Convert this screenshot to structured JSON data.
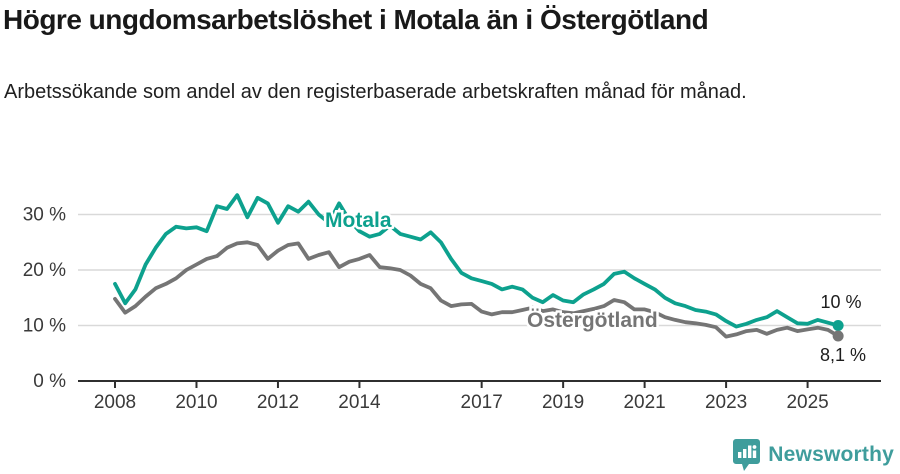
{
  "page": {
    "title": "Högre ungdomsarbetslöshet i Motala än i Östergötland",
    "subtitle": "Arbetssökande som andel av den registerbaserade arbetskraften månad för månad.",
    "brand": "Newsworthy"
  },
  "colors": {
    "motala": "#0da18e",
    "ostergotland": "#757575",
    "grid": "#d9d9d9",
    "axis": "#2f2f2f",
    "tick_text": "#3a3a3a",
    "value_text": "#1d1d1d",
    "brand": "#3f9d9c"
  },
  "chart_data": {
    "type": "line",
    "title": "Högre ungdomsarbetslöshet i Motala än i Östergötland",
    "subtitle": "Arbetssökande som andel av den registerbaserade arbetskraften månad för månad.",
    "grid": "horizontal",
    "legend": "inline-labels",
    "xlim": [
      2007.1,
      2026.8
    ],
    "ylim": [
      0,
      35
    ],
    "y_ticks": [
      {
        "value": 0,
        "label": "0 %"
      },
      {
        "value": 10,
        "label": "10 %"
      },
      {
        "value": 20,
        "label": "20 %"
      },
      {
        "value": 30,
        "label": "30 %"
      }
    ],
    "x_ticks": [
      {
        "value": 2008,
        "label": "2008"
      },
      {
        "value": 2010,
        "label": "2010"
      },
      {
        "value": 2012,
        "label": "2012"
      },
      {
        "value": 2014,
        "label": "2014"
      },
      {
        "value": 2017,
        "label": "2017"
      },
      {
        "value": 2019,
        "label": "2019"
      },
      {
        "value": 2021,
        "label": "2021"
      },
      {
        "value": 2023,
        "label": "2023"
      },
      {
        "value": 2025,
        "label": "2025"
      }
    ],
    "x": [
      2008.0,
      2008.25,
      2008.5,
      2008.75,
      2009.0,
      2009.25,
      2009.5,
      2009.75,
      2010.0,
      2010.25,
      2010.5,
      2010.75,
      2011.0,
      2011.25,
      2011.5,
      2011.75,
      2012.0,
      2012.25,
      2012.5,
      2012.75,
      2013.0,
      2013.25,
      2013.5,
      2013.75,
      2014.0,
      2014.25,
      2014.5,
      2014.75,
      2015.0,
      2015.25,
      2015.5,
      2015.75,
      2016.0,
      2016.25,
      2016.5,
      2016.75,
      2017.0,
      2017.25,
      2017.5,
      2017.75,
      2018.0,
      2018.25,
      2018.5,
      2018.75,
      2019.0,
      2019.25,
      2019.5,
      2019.75,
      2020.0,
      2020.25,
      2020.5,
      2020.75,
      2021.0,
      2021.25,
      2021.5,
      2021.75,
      2022.0,
      2022.25,
      2022.5,
      2022.75,
      2023.0,
      2023.25,
      2023.5,
      2023.75,
      2024.0,
      2024.25,
      2024.5,
      2024.75,
      2025.0,
      2025.25,
      2025.5,
      2025.75
    ],
    "series": [
      {
        "name": "Motala",
        "color": "#0da18e",
        "end_label": "10 %",
        "end_value": 10.0,
        "values": [
          17.5,
          14.0,
          16.5,
          21.0,
          24.0,
          26.5,
          27.8,
          27.5,
          27.7,
          27.0,
          31.5,
          31.0,
          33.5,
          29.5,
          33.0,
          32.0,
          28.5,
          31.5,
          30.5,
          32.3,
          30.0,
          28.5,
          32.0,
          29.0,
          27.0,
          26.0,
          26.5,
          28.0,
          26.5,
          26.0,
          25.5,
          26.8,
          25.0,
          22.0,
          19.5,
          18.5,
          18.0,
          17.5,
          16.5,
          17.0,
          16.5,
          15.0,
          14.2,
          15.5,
          14.5,
          14.2,
          15.6,
          16.5,
          17.5,
          19.3,
          19.7,
          18.5,
          17.5,
          16.5,
          15.0,
          14.0,
          13.5,
          12.8,
          12.5,
          12.0,
          10.8,
          9.8,
          10.3,
          11.0,
          11.5,
          12.6,
          11.5,
          10.4,
          10.3,
          11.0,
          10.5,
          10.0
        ]
      },
      {
        "name": "Östergötland",
        "color": "#757575",
        "end_label": "8,1 %",
        "end_value": 8.1,
        "values": [
          14.8,
          12.3,
          13.5,
          15.2,
          16.7,
          17.5,
          18.5,
          20.0,
          21.0,
          22.0,
          22.5,
          24.0,
          24.8,
          25.0,
          24.5,
          22.0,
          23.5,
          24.5,
          24.8,
          22.0,
          22.7,
          23.2,
          20.5,
          21.5,
          22.0,
          22.7,
          20.5,
          20.3,
          20.0,
          19.0,
          17.5,
          16.7,
          14.5,
          13.5,
          13.8,
          13.9,
          12.5,
          12.0,
          12.4,
          12.4,
          12.8,
          13.2,
          12.6,
          12.9,
          12.4,
          12.2,
          12.6,
          13.0,
          13.5,
          14.6,
          14.2,
          12.9,
          12.9,
          12.4,
          11.5,
          11.0,
          10.6,
          10.4,
          10.1,
          9.7,
          8.0,
          8.4,
          9.0,
          9.2,
          8.5,
          9.2,
          9.6,
          9.0,
          9.3,
          9.6,
          9.2,
          8.1
        ]
      }
    ]
  }
}
